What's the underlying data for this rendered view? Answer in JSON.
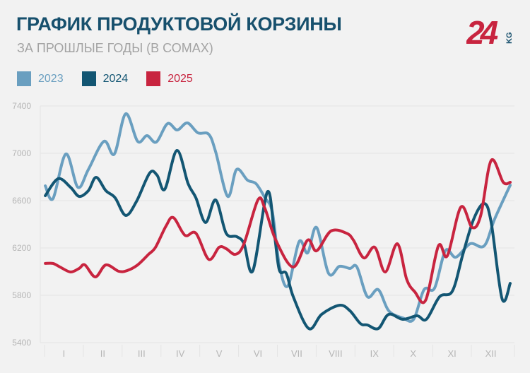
{
  "header": {
    "title": "ГРАФИК ПРОДУКТОВОЙ КОРЗИНЫ",
    "subtitle": "ЗА ПРОШЛЫЕ ГОДЫ (В СОМАХ)"
  },
  "logo": {
    "text": "24",
    "suffix": "KG",
    "color": "#c8243f",
    "suffix_color": "#17506d"
  },
  "colors": {
    "title": "#17506d",
    "background": "#f2f2f2",
    "grid": "#e4e4e4",
    "tick": "#b5b5b5"
  },
  "chart_data": {
    "type": "line",
    "title": "ГРАФИК ПРОДУКТОВОЙ КОРЗИНЫ",
    "subtitle": "ЗА ПРОШЛЫЕ ГОДЫ (В СОМАХ)",
    "xlabel": "",
    "ylabel": "",
    "x_unit": "month position (0 = start of I, 12 = end of XII)",
    "categories": [
      "I",
      "II",
      "III",
      "IV",
      "V",
      "VI",
      "VII",
      "VIII",
      "IX",
      "X",
      "XI",
      "XII"
    ],
    "xlim": [
      0,
      12
    ],
    "ylim": [
      5400,
      7400
    ],
    "yticks": [
      "5400",
      "5800",
      "6200",
      "6600",
      "7000",
      "7400"
    ],
    "grid": true,
    "legend_position": "top-left",
    "series": [
      {
        "name": "2023",
        "color": "#6a9fc0",
        "x": [
          0.02,
          0.22,
          0.55,
          0.86,
          1.13,
          1.53,
          1.8,
          2.09,
          2.4,
          2.64,
          2.88,
          3.17,
          3.42,
          3.68,
          3.95,
          4.23,
          4.41,
          4.72,
          4.95,
          5.23,
          5.45,
          5.68,
          5.87,
          6.05,
          6.27,
          6.56,
          6.78,
          7.01,
          7.32,
          7.6,
          7.87,
          8.05,
          8.32,
          8.6,
          8.87,
          9.23,
          9.51,
          9.78,
          10.05,
          10.33,
          10.6,
          10.97,
          11.33,
          11.6,
          12.0
        ],
        "y": [
          6725,
          6618,
          6994,
          6713,
          6863,
          7101,
          6994,
          7334,
          7101,
          7149,
          7095,
          7251,
          7197,
          7257,
          7173,
          7161,
          7012,
          6636,
          6863,
          6773,
          6743,
          6624,
          6504,
          6057,
          5878,
          6254,
          6158,
          6373,
          5985,
          6045,
          6027,
          6039,
          5788,
          5848,
          5669,
          5609,
          5597,
          5848,
          5860,
          6176,
          6122,
          6236,
          6218,
          6445,
          6731
        ]
      },
      {
        "name": "2024",
        "color": "#135673",
        "x": [
          0.02,
          0.35,
          0.67,
          0.89,
          1.13,
          1.33,
          1.58,
          1.82,
          2.09,
          2.37,
          2.71,
          2.9,
          3.1,
          3.41,
          3.7,
          3.9,
          4.15,
          4.41,
          4.68,
          4.95,
          5.14,
          5.37,
          5.74,
          5.92,
          6.05,
          6.23,
          6.41,
          6.81,
          7.14,
          7.6,
          7.87,
          8.14,
          8.32,
          8.6,
          8.87,
          9.23,
          9.6,
          9.84,
          10.18,
          10.51,
          10.78,
          11.06,
          11.33,
          11.51,
          11.79,
          12.0
        ],
        "y": [
          6642,
          6785,
          6713,
          6636,
          6684,
          6797,
          6684,
          6624,
          6475,
          6594,
          6833,
          6815,
          6696,
          7024,
          6743,
          6624,
          6415,
          6606,
          6325,
          6296,
          6236,
          6009,
          6672,
          6325,
          6015,
          5985,
          5788,
          5519,
          5639,
          5716,
          5669,
          5561,
          5549,
          5519,
          5639,
          5597,
          5627,
          5597,
          5788,
          5836,
          6146,
          6445,
          6576,
          6415,
          5770,
          5901
        ]
      },
      {
        "name": "2025",
        "color": "#c8243f",
        "x": [
          0.02,
          0.22,
          0.4,
          0.67,
          0.89,
          1.04,
          1.31,
          1.58,
          1.91,
          2.13,
          2.4,
          2.68,
          2.86,
          3.13,
          3.32,
          3.62,
          3.9,
          4.23,
          4.5,
          4.68,
          4.92,
          5.14,
          5.5,
          5.68,
          5.96,
          6.41,
          6.78,
          7.01,
          7.38,
          7.78,
          7.96,
          8.23,
          8.51,
          8.78,
          9.09,
          9.33,
          9.54,
          9.82,
          10.15,
          10.38,
          10.73,
          11.02,
          11.24,
          11.51,
          11.82,
          12.0
        ],
        "y": [
          6069,
          6069,
          6039,
          5997,
          6027,
          6057,
          5955,
          6057,
          6003,
          6009,
          6057,
          6146,
          6206,
          6385,
          6457,
          6307,
          6325,
          6104,
          6206,
          6194,
          6146,
          6236,
          6606,
          6534,
          6266,
          6039,
          6266,
          6176,
          6343,
          6325,
          6266,
          6116,
          6206,
          5997,
          6236,
          5937,
          5830,
          5758,
          6218,
          6134,
          6546,
          6373,
          6475,
          6940,
          6755,
          6755
        ]
      }
    ]
  }
}
